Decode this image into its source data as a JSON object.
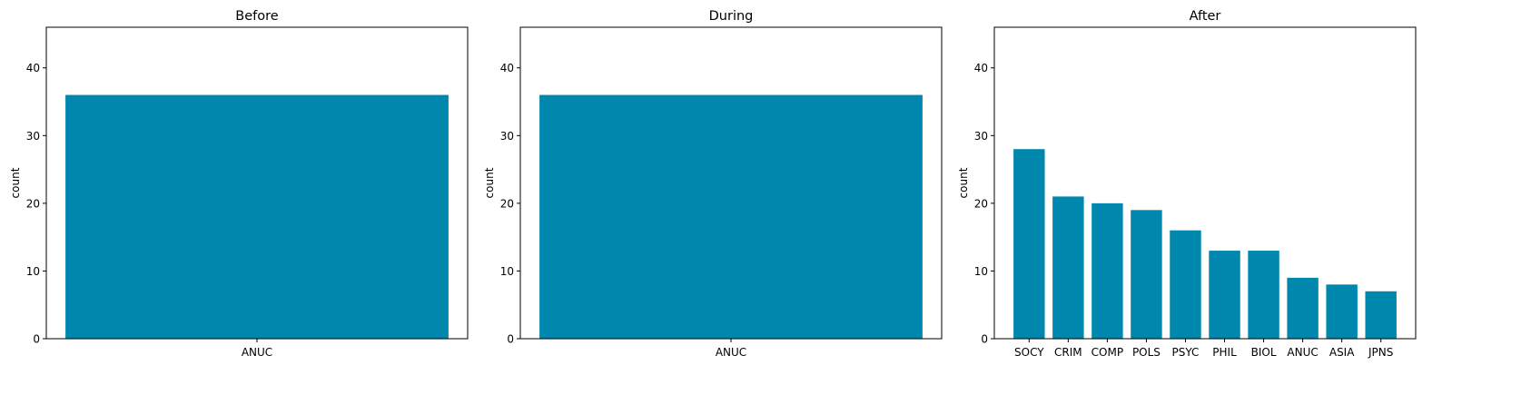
{
  "bar_color": "#0087AE",
  "chart_data": [
    {
      "type": "bar",
      "title": "Before",
      "xlabel": "",
      "ylabel": "count",
      "categories": [
        "ANUC"
      ],
      "values": [
        36
      ],
      "ylim": [
        0,
        46
      ],
      "yticks": [
        0,
        10,
        20,
        30,
        40
      ],
      "grid": false
    },
    {
      "type": "bar",
      "title": "During",
      "xlabel": "",
      "ylabel": "count",
      "categories": [
        "ANUC"
      ],
      "values": [
        36
      ],
      "ylim": [
        0,
        46
      ],
      "yticks": [
        0,
        10,
        20,
        30,
        40
      ],
      "grid": false
    },
    {
      "type": "bar",
      "title": "After",
      "xlabel": "",
      "ylabel": "count",
      "categories": [
        "SOCY",
        "CRIM",
        "COMP",
        "POLS",
        "PSYC",
        "PHIL",
        "BIOL",
        "ANUC",
        "ASIA",
        "JPNS"
      ],
      "values": [
        28,
        21,
        20,
        19,
        16,
        13,
        13,
        9,
        8,
        7
      ],
      "ylim": [
        0,
        46
      ],
      "yticks": [
        0,
        10,
        20,
        30,
        40
      ],
      "grid": false
    }
  ]
}
